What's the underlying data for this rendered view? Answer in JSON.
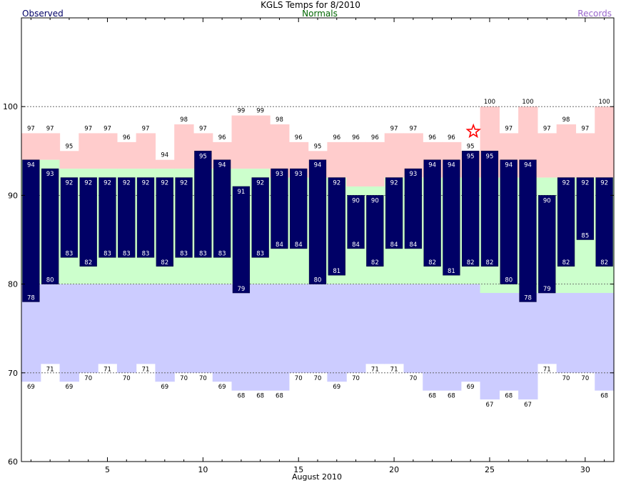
{
  "chart_data": {
    "type": "bar",
    "title": "KGLS Temps for 8/2010",
    "legend": {
      "observed": "Observed",
      "normals": "Normals",
      "records": "Records"
    },
    "xlabel": "August 2010",
    "ylabel": "",
    "ylim": [
      60,
      110
    ],
    "xlim": [
      0.5,
      31.5
    ],
    "yticks": [
      60,
      70,
      80,
      90,
      100
    ],
    "xticks": [
      5,
      10,
      15,
      20,
      25,
      30
    ],
    "grid": "dotted horizontal at 70, 80, 90, 100",
    "days": [
      1,
      2,
      3,
      4,
      5,
      6,
      7,
      8,
      9,
      10,
      11,
      12,
      13,
      14,
      15,
      16,
      17,
      18,
      19,
      20,
      21,
      22,
      23,
      24,
      25,
      26,
      27,
      28,
      29,
      30,
      31
    ],
    "series": [
      {
        "name": "Observed",
        "label": "Observed high",
        "values": [
          94,
          93,
          92,
          92,
          92,
          92,
          92,
          92,
          92,
          95,
          94,
          91,
          92,
          93,
          93,
          94,
          92,
          90,
          90,
          92,
          93,
          94,
          94,
          95,
          95,
          94,
          94,
          90,
          92,
          92,
          92
        ]
      },
      {
        "name": "Observed",
        "label": "Observed low",
        "values": [
          78,
          80,
          83,
          82,
          83,
          83,
          83,
          82,
          83,
          83,
          83,
          79,
          83,
          84,
          84,
          80,
          81,
          84,
          82,
          84,
          84,
          82,
          81,
          82,
          82,
          80,
          78,
          79,
          82,
          85,
          82
        ]
      },
      {
        "name": "Normals",
        "label": "Normal high",
        "values": [
          94,
          94,
          93,
          93,
          93,
          93,
          93,
          93,
          93,
          93,
          93,
          93,
          93,
          92,
          92,
          92,
          92,
          91,
          91,
          92,
          92,
          92,
          92,
          92,
          92,
          92,
          92,
          92,
          92,
          92,
          92
        ]
      },
      {
        "name": "Normals",
        "label": "Normal low",
        "values": [
          80,
          80,
          80,
          80,
          80,
          80,
          80,
          80,
          80,
          80,
          80,
          80,
          80,
          80,
          80,
          80,
          80,
          80,
          80,
          80,
          80,
          80,
          80,
          80,
          79,
          79,
          79,
          79,
          79,
          79,
          79
        ]
      },
      {
        "name": "Records",
        "label": "Record high",
        "values": [
          97,
          97,
          95,
          97,
          97,
          96,
          97,
          94,
          98,
          97,
          96,
          99,
          99,
          98,
          96,
          95,
          96,
          96,
          96,
          97,
          97,
          96,
          96,
          95,
          100,
          97,
          100,
          97,
          98,
          97,
          100
        ]
      },
      {
        "name": "Records",
        "label": "Record low",
        "values": [
          69,
          71,
          69,
          70,
          71,
          70,
          71,
          69,
          70,
          70,
          69,
          68,
          68,
          68,
          70,
          70,
          69,
          70,
          71,
          71,
          70,
          68,
          68,
          69,
          67,
          68,
          67,
          71,
          70,
          70,
          68
        ]
      }
    ],
    "marker": {
      "type": "star",
      "day": 24,
      "value": 97.2
    },
    "colors": {
      "observed": "#000066",
      "normal_band": "#ccffcc",
      "record_high": "#ffcccc",
      "record_low": "#ccccff",
      "normals_text": "#006600",
      "records_text": "#9966cc",
      "observed_text": "#000066",
      "star": "#ff0000"
    }
  }
}
